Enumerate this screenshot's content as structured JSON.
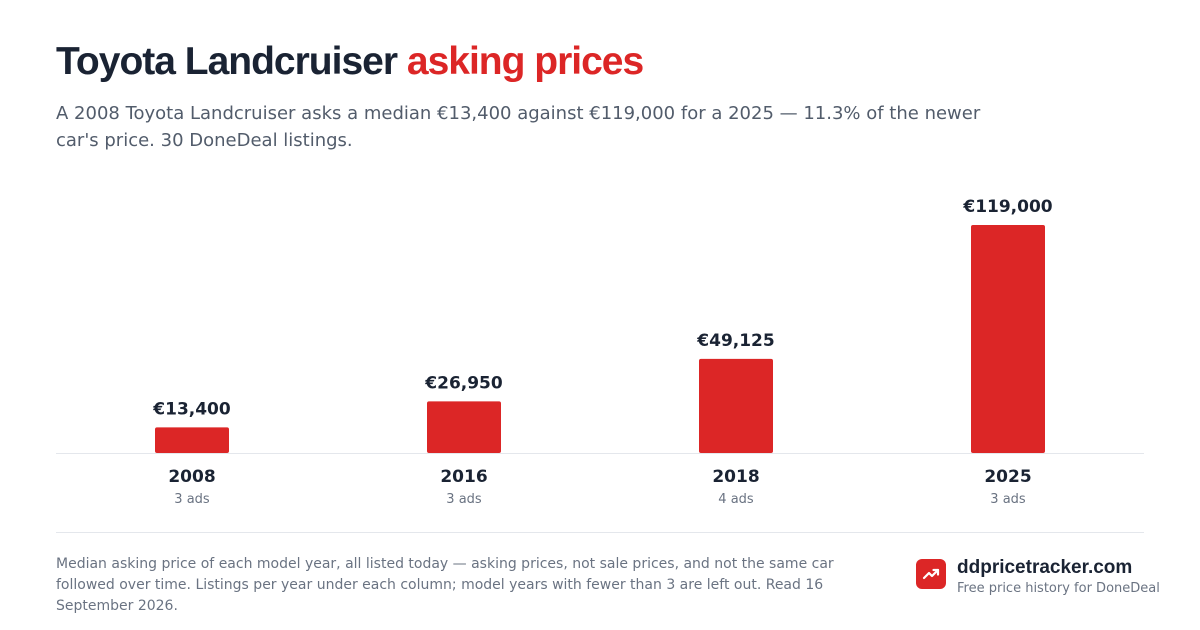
{
  "title": {
    "main": "Toyota Landcruiser",
    "accent": "asking prices"
  },
  "subtitle": "A 2008 Toyota Landcruiser asks a median €13,400 against €119,000 for a 2025 — 11.3% of the newer car's price. 30 DoneDeal listings.",
  "colors": {
    "accent": "#dc2626",
    "text": "#1a2333",
    "muted": "#6a7382",
    "axis": "#e4e7ec"
  },
  "chart_data": {
    "type": "bar",
    "categories": [
      "2008",
      "2016",
      "2018",
      "2025"
    ],
    "values": [
      13400,
      26950,
      49125,
      119000
    ],
    "value_labels": [
      "€13,400",
      "€26,950",
      "€49,125",
      "€119,000"
    ],
    "sublabels": [
      "3 ads",
      "3 ads",
      "4 ads",
      "3 ads"
    ],
    "ylim": [
      0,
      119000
    ],
    "grid": false
  },
  "footnote": "Median asking price of each model year, all listed today — asking prices, not sale prices, and not the same car followed over time. Listings per year under each column; model years with fewer than 3 are left out. Read 16 September 2026.",
  "brand": {
    "icon": "trending-up-icon",
    "name": "ddpricetracker.com",
    "tagline": "Free price history for DoneDeal"
  }
}
